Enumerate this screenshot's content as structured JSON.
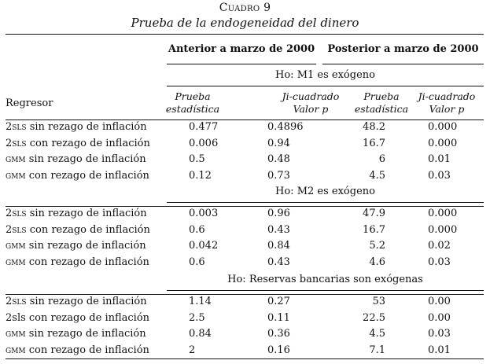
{
  "caption": {
    "label": "Cuadro 9",
    "title": "Prueba de la endogeneidad del dinero"
  },
  "headers": {
    "period_before": "Anterior a marzo de 2000",
    "period_after": "Posterior a marzo de 2000",
    "regressor": "Regresor",
    "stat_col": "Prueba estadística",
    "chi_col": "Ji-cuadrado Valor p"
  },
  "panels": [
    {
      "title": "Ho: M1 es exógeno",
      "rows": [
        {
          "prefix": "2sls",
          "rest": " sin rezago de inflación",
          "b_stat": "0.477",
          "b_p": "0.4896",
          "a_stat": "48.2",
          "a_p": "0.000"
        },
        {
          "prefix": "2sls",
          "rest": " con rezago de inflación",
          "b_stat": "0.006",
          "b_p": "0.94",
          "a_stat": "16.7",
          "a_p": "0.000"
        },
        {
          "prefix": "gmm",
          "rest": " sin rezago de inflación",
          "b_stat": "0.5",
          "b_p": "0.48",
          "a_stat": "6",
          "a_p": "0.01"
        },
        {
          "prefix": "gmm",
          "rest": " con rezago de inflación",
          "b_stat": "0.12",
          "b_p": "0.73",
          "a_stat": "4.5",
          "a_p": "0.03"
        }
      ]
    },
    {
      "title": "Ho: M2 es exógeno",
      "rows": [
        {
          "prefix": "2sls",
          "rest": " sin rezago de inflación",
          "b_stat": "0.003",
          "b_p": "0.96",
          "a_stat": "47.9",
          "a_p": "0.000"
        },
        {
          "prefix": "2sls",
          "rest": " con rezago de inflación",
          "b_stat": "0.6",
          "b_p": "0.43",
          "a_stat": "16.7",
          "a_p": "0.000"
        },
        {
          "prefix": "gmm",
          "rest": " sin rezago de inflación",
          "b_stat": "0.042",
          "b_p": "0.84",
          "a_stat": "5.2",
          "a_p": "0.02"
        },
        {
          "prefix": "gmm",
          "rest": " con rezago de inflación",
          "b_stat": "0.6",
          "b_p": "0.43",
          "a_stat": "4.6",
          "a_p": "0.03"
        }
      ]
    },
    {
      "title": "Ho: Reservas bancarias son exógenas",
      "rows": [
        {
          "prefix": "2sls",
          "rest": " sin rezago de inflación",
          "b_stat": "1.14",
          "b_p": "0.27",
          "a_stat": "53",
          "a_p": "0.00"
        },
        {
          "prefix": "2sls con rezago de inflación",
          "rest": "",
          "plain": true,
          "b_stat": "2.5",
          "b_p": "0.11",
          "a_stat": "22.5",
          "a_p": "0.00"
        },
        {
          "prefix": "gmm",
          "rest": " sin rezago de inflación",
          "b_stat": "0.84",
          "b_p": "0.36",
          "a_stat": "4.5",
          "a_p": "0.03"
        },
        {
          "prefix": "gmm",
          "rest": " con rezago de inflación",
          "b_stat": "2",
          "b_p": "0.16",
          "a_stat": "7.1",
          "a_p": "0.01"
        }
      ]
    }
  ]
}
